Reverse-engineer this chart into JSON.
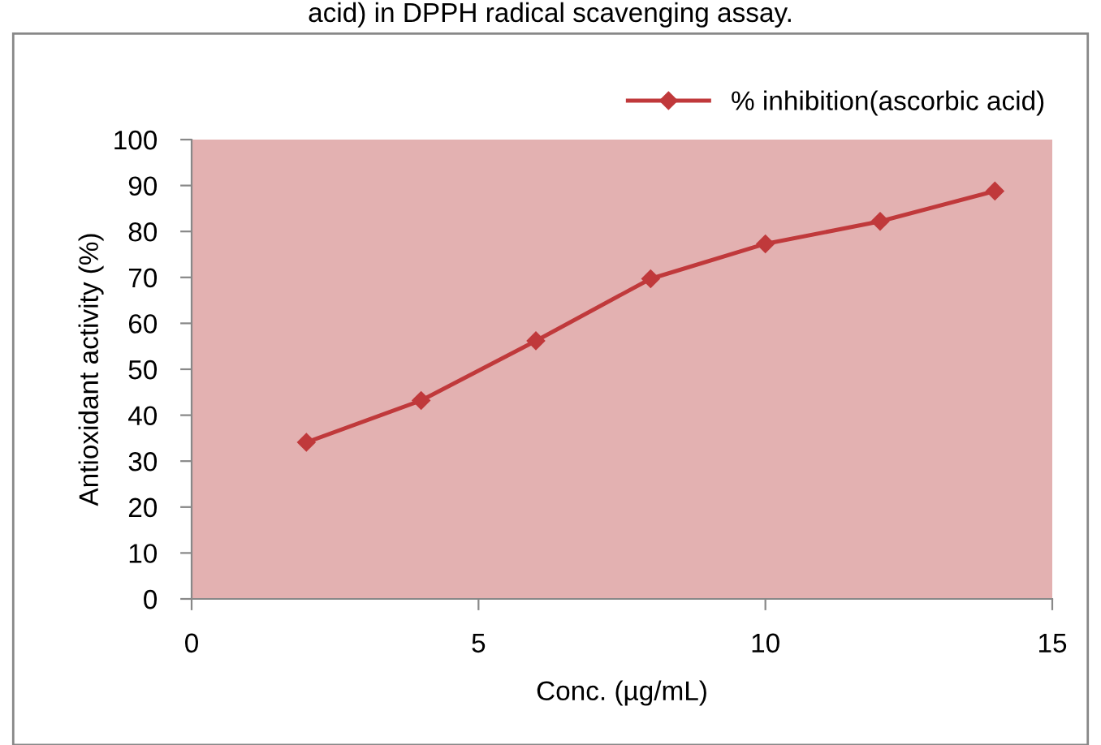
{
  "chart_data": {
    "type": "line",
    "title": "acid) in DPPH radical scavenging assay.",
    "xlabel": "Conc. (µg/mL)",
    "ylabel": "Antioxidant activity (%)",
    "x": [
      2,
      4,
      6,
      8,
      10,
      12,
      14
    ],
    "series": [
      {
        "name": "% inhibition(ascorbic acid)",
        "color": "#c0393b",
        "values": [
          34.1,
          43.2,
          56.2,
          69.7,
          77.3,
          82.2,
          88.8
        ]
      }
    ],
    "xlim": [
      0,
      15
    ],
    "xticks": [
      0,
      5,
      10,
      15
    ],
    "ylim": [
      0,
      100
    ],
    "yticks": [
      0,
      10,
      20,
      30,
      40,
      50,
      60,
      70,
      80,
      90,
      100
    ],
    "grid": false,
    "legend": "top right",
    "marker": "diamond",
    "line_style": "solid"
  }
}
